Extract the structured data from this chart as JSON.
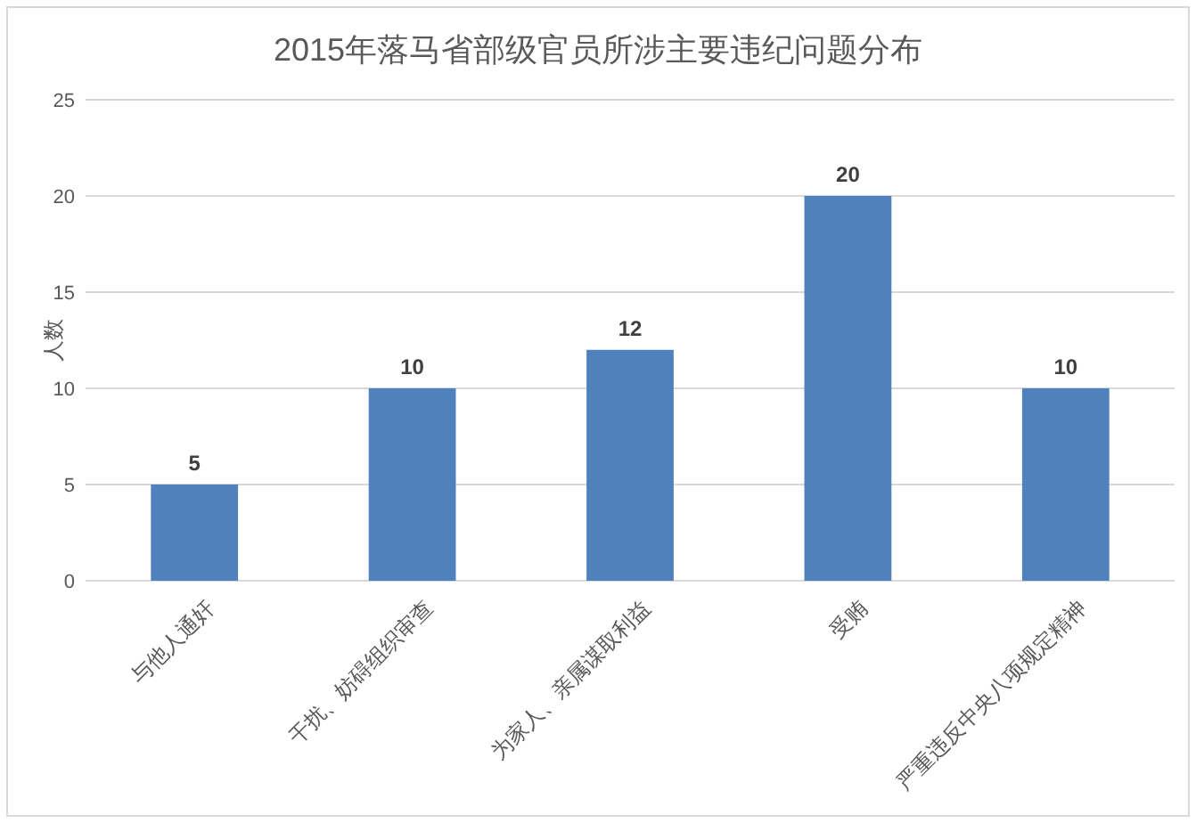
{
  "chart_data": {
    "type": "bar",
    "title": "2015年落马省部级官员所涉主要违纪问题分布",
    "ylabel": "人数",
    "categories": [
      "与他人通奸",
      "干扰、妨碍组织审查",
      "为家人、亲属谋取利益",
      "受贿",
      "严重违反中央八项规定精神"
    ],
    "values": [
      5,
      10,
      12,
      20,
      10
    ],
    "color": "#4f81bd",
    "ylim": [
      0,
      25
    ],
    "yticks": [
      0,
      5,
      10,
      15,
      20,
      25
    ],
    "grid": "y",
    "data_labels": true
  }
}
